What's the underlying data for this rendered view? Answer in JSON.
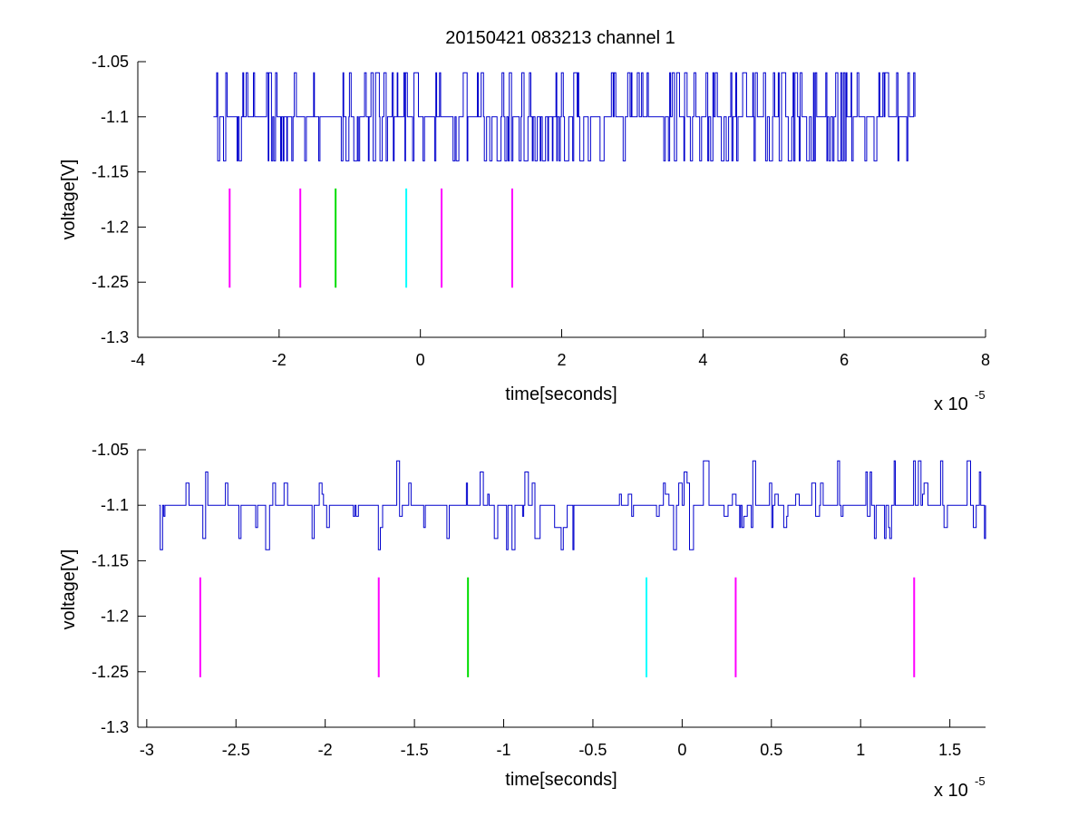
{
  "figure": {
    "title": "20150421 083213 channel 1",
    "colors": {
      "trace": "#0000cd",
      "marker_magenta": "#ff00ff",
      "marker_green": "#00dd00",
      "marker_cyan": "#00ffff",
      "axis": "#000000"
    }
  },
  "chart_data": [
    {
      "type": "line",
      "title": "20150421 083213 channel 1",
      "xlabel": "time[seconds]",
      "ylabel": "voltage[V]",
      "x_multiplier_base": "x 10",
      "x_multiplier_exponent": "-5",
      "xlim": [
        -4,
        8
      ],
      "ylim": [
        -1.3,
        -1.05
      ],
      "x_ticks": [
        -4,
        -2,
        0,
        2,
        4,
        6,
        8
      ],
      "x_tick_labels": [
        "-4",
        "-2",
        "0",
        "2",
        "4",
        "6",
        "8"
      ],
      "y_ticks": [
        -1.05,
        -1.1,
        -1.15,
        -1.2,
        -1.25,
        -1.3
      ],
      "y_tick_labels": [
        "-1.05",
        "-1.1",
        "-1.15",
        "-1.2",
        "-1.25",
        "-1.3"
      ],
      "grid": false,
      "series": [
        {
          "kind": "digitized-trace",
          "color": "#0000cd",
          "x_range": [
            -2.93,
            7.0
          ],
          "baseline": -1.1,
          "levels": [
            -1.06,
            -1.1,
            -1.14
          ]
        }
      ],
      "markers": [
        {
          "x": -2.7,
          "y_range": [
            -1.255,
            -1.165
          ],
          "color": "#ff00ff"
        },
        {
          "x": -1.7,
          "y_range": [
            -1.255,
            -1.165
          ],
          "color": "#ff00ff"
        },
        {
          "x": -1.2,
          "y_range": [
            -1.255,
            -1.165
          ],
          "color": "#00dd00"
        },
        {
          "x": -0.2,
          "y_range": [
            -1.255,
            -1.165
          ],
          "color": "#00ffff"
        },
        {
          "x": 0.3,
          "y_range": [
            -1.255,
            -1.165
          ],
          "color": "#ff00ff"
        },
        {
          "x": 1.3,
          "y_range": [
            -1.255,
            -1.165
          ],
          "color": "#ff00ff"
        }
      ]
    },
    {
      "type": "line",
      "xlabel": "time[seconds]",
      "ylabel": "voltage[V]",
      "x_multiplier_base": "x 10",
      "x_multiplier_exponent": "-5",
      "xlim": [
        -3.05,
        1.7
      ],
      "ylim": [
        -1.3,
        -1.05
      ],
      "x_ticks": [
        -3,
        -2.5,
        -2,
        -1.5,
        -1,
        -0.5,
        0,
        0.5,
        1,
        1.5
      ],
      "x_tick_labels": [
        "-3",
        "-2.5",
        "-2",
        "-1.5",
        "-1",
        "-0.5",
        "0",
        "0.5",
        "1",
        "1.5"
      ],
      "y_ticks": [
        -1.05,
        -1.1,
        -1.15,
        -1.2,
        -1.25,
        -1.3
      ],
      "y_tick_labels": [
        "-1.05",
        "-1.1",
        "-1.15",
        "-1.2",
        "-1.25",
        "-1.3"
      ],
      "grid": false,
      "series": [
        {
          "kind": "digitized-trace",
          "color": "#0000cd",
          "x_range": [
            -2.93,
            1.7
          ],
          "baseline": -1.1,
          "levels": [
            -1.06,
            -1.07,
            -1.08,
            -1.09,
            -1.1,
            -1.11,
            -1.12,
            -1.13,
            -1.14
          ]
        }
      ],
      "markers": [
        {
          "x": -2.7,
          "y_range": [
            -1.255,
            -1.165
          ],
          "color": "#ff00ff"
        },
        {
          "x": -1.7,
          "y_range": [
            -1.255,
            -1.165
          ],
          "color": "#ff00ff"
        },
        {
          "x": -1.2,
          "y_range": [
            -1.255,
            -1.165
          ],
          "color": "#00dd00"
        },
        {
          "x": -0.2,
          "y_range": [
            -1.255,
            -1.165
          ],
          "color": "#00ffff"
        },
        {
          "x": 0.3,
          "y_range": [
            -1.255,
            -1.165
          ],
          "color": "#ff00ff"
        },
        {
          "x": 1.3,
          "y_range": [
            -1.255,
            -1.165
          ],
          "color": "#ff00ff"
        }
      ]
    }
  ]
}
